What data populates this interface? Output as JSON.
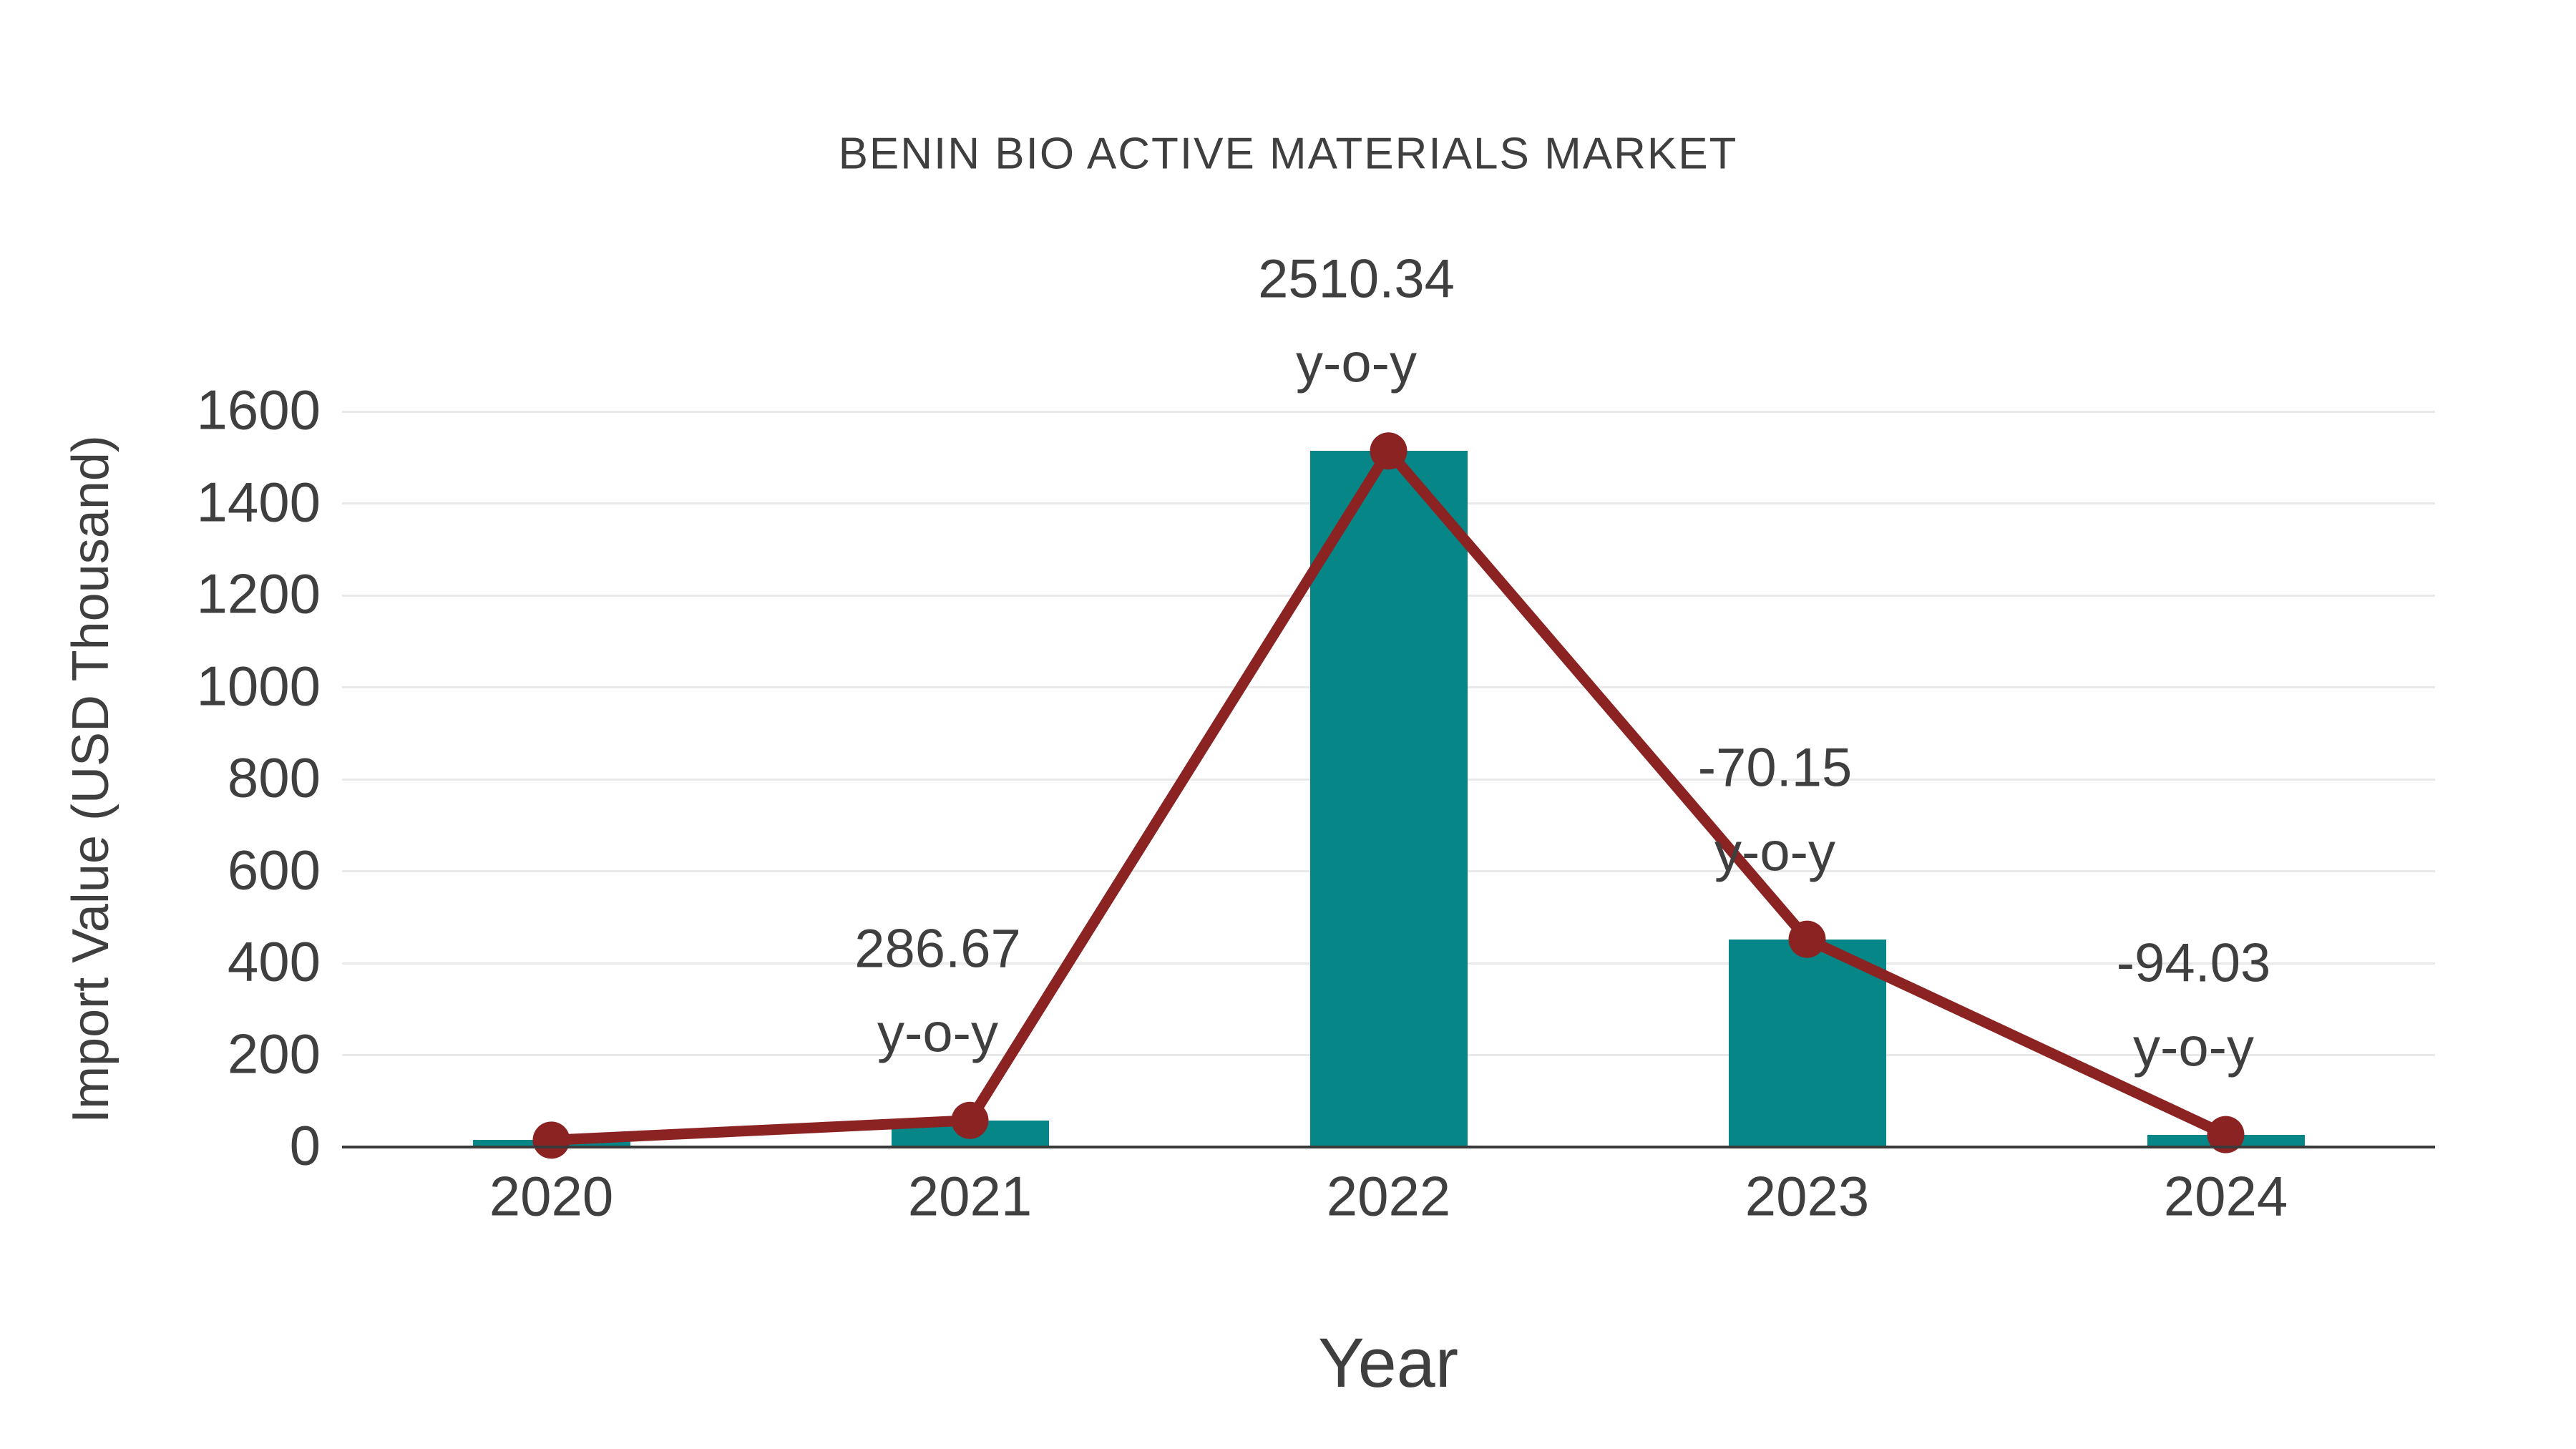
{
  "chart_data": {
    "type": "bar",
    "subtype": "bar-with-line-overlay",
    "title": "BENIN BIO ACTIVE MATERIALS MARKET",
    "xlabel": "Year",
    "ylabel": "Import Value (USD Thousand)",
    "categories": [
      "2020",
      "2021",
      "2022",
      "2023",
      "2024"
    ],
    "series": [
      {
        "name": "import-value-bars",
        "type": "bar",
        "values": [
          15,
          58,
          1514,
          452,
          27
        ]
      },
      {
        "name": "import-value-line",
        "type": "line",
        "values": [
          15,
          58,
          1514,
          452,
          27
        ]
      }
    ],
    "annotations": [
      {
        "category": "2021",
        "line1": "286.67",
        "line2": "y-o-y"
      },
      {
        "category": "2022",
        "line1": "2510.34",
        "line2": "y-o-y"
      },
      {
        "category": "2023",
        "line1": "-70.15",
        "line2": "y-o-y"
      },
      {
        "category": "2024",
        "line1": "-94.03",
        "line2": "y-o-y"
      }
    ],
    "yticks": [
      0,
      200,
      400,
      600,
      800,
      1000,
      1200,
      1400,
      1600
    ],
    "ylim": [
      0,
      1600
    ],
    "grid": true,
    "legend_position": "none",
    "colors": {
      "bar": "#068686",
      "line": "#8b2323",
      "marker": "#8b2323",
      "text": "#3f3f3f",
      "gridline": "#e9e9e9",
      "axis_line": "#3a3a3a",
      "background": "#ffffff"
    }
  }
}
